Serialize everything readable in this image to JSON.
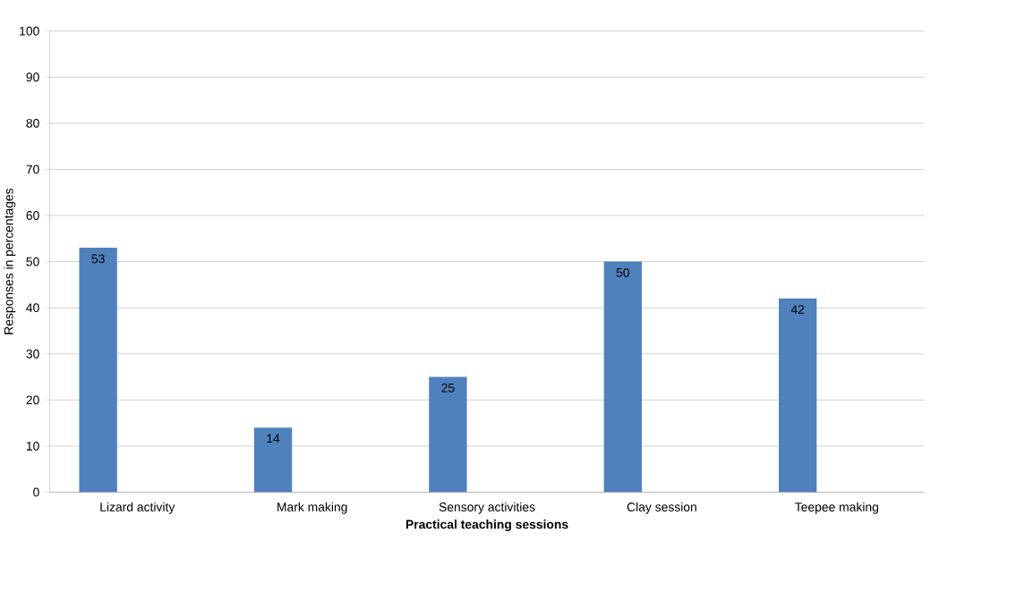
{
  "chart_data": {
    "type": "bar",
    "xlabel": "Practical teaching sessions",
    "ylabel": "Responses in percentages",
    "categories": [
      "Lizard activity",
      "Mark making",
      "Sensory activities",
      "Clay session",
      "Teepee making"
    ],
    "values": [
      53,
      14,
      25,
      50,
      42
    ],
    "color": "#4f81bd",
    "ylim": [
      0,
      100
    ],
    "yticks": [
      0,
      10,
      20,
      30,
      40,
      50,
      60,
      70,
      80,
      90,
      100
    ],
    "grid": "y",
    "data_labels": true
  }
}
